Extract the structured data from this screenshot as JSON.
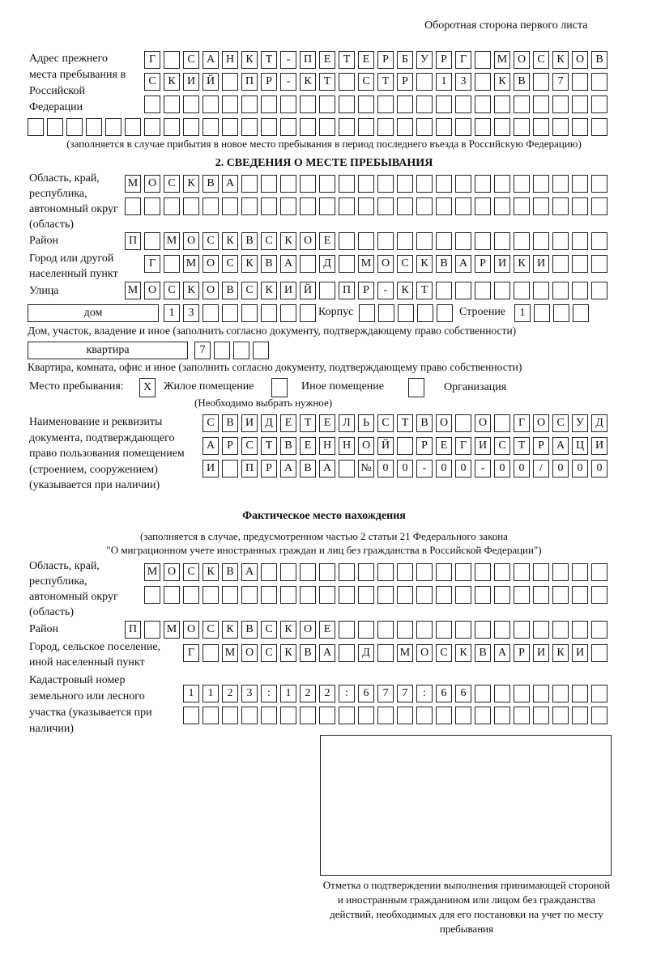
{
  "header": {
    "page_side": "Оборотная сторона первого листа"
  },
  "previous_address": {
    "label": "Адрес прежнего места пребывания в Российской Федерации",
    "rows": [
      "Г САНКТ-ПЕТЕРБУРГ МОСКОВ",
      "СКИЙ ПР-КТ СТР 13 КВ 7",
      "",
      ""
    ],
    "note": "(заполняется в случае прибытия в новое место пребывания в период последнего въезда в Российскую Федерацию)"
  },
  "section2": {
    "title": "2. СВЕДЕНИЯ О МЕСТЕ ПРЕБЫВАНИЯ",
    "region_label": "Область, край, республика, автономный округ (область)",
    "region_rows": [
      "МОСКВА",
      ""
    ],
    "district_label": "Район",
    "district": "П МОСКВСКОЕ",
    "city_label": "Город или другой населенный пункт",
    "city": "Г МОСКВА Д МОСКВАРИКИ",
    "street_label": "Улица",
    "street": "МОСКОВСКИЙ ПР-КТ",
    "house_type": "дом",
    "house_number": "13",
    "korpus_label": "Корпус",
    "korpus": "",
    "building_label": "Строение",
    "building": "1",
    "house_note": "Дом, участок, владение и иное (заполнить согласно документу, подтверждающему право собственности)",
    "apartment_type": "квартира",
    "apartment_number": "7",
    "apartment_note": "Квартира, комната, офис и иное (заполнить согласно документу, подтверждающему право собственности)",
    "stay_place_label": "Место пребывания:",
    "options": [
      {
        "label": "Жилое помещение",
        "checked": true,
        "mark": "Х"
      },
      {
        "label": "Иное помещение",
        "checked": false,
        "mark": ""
      },
      {
        "label": "Организация",
        "checked": false,
        "mark": ""
      }
    ],
    "choose_note": "(Необходимо выбрать нужное)",
    "document_label": "Наименование и реквизиты документа, подтверждающего право пользования помещением (строением, сооружением) (указывается при наличии)",
    "document_rows": [
      "СВИДЕТЕЛЬСТВО О ГОСУД",
      "АРСТВЕННОЙ РЕГИСТРАЦИ",
      "И ПРАВА №00-00-00/000"
    ]
  },
  "actual_location": {
    "title": "Фактическое место нахождения",
    "note_line1": "(заполняется в случае, предусмотренном частью 2 статьи 21 Федерального закона",
    "note_line2": "\"О миграционном учете иностранных граждан и лиц без гражданства в Российской Федерации\")",
    "region_label": "Область, край, республика, автономный округ (область)",
    "region_rows": [
      "МОСКВА",
      ""
    ],
    "district_label": "Район",
    "district": "П МОСКВСКОЕ",
    "city_label": "Город, сельское поселение, иной населенный пункт",
    "city": "Г МОСКВА Д МОСКВАРИКИ",
    "cadastral_label": "Кадастровый номер земельного или лесного участка (указывается при наличии)",
    "cadastral_rows": [
      "1123:122:677:66",
      ""
    ]
  },
  "confirmation": {
    "caption": "Отметка о подтверждении выполнения принимающей стороной и иностранным гражданином или лицом без гражданства действий, необходимых для его постановки на учет по месту пребывания"
  }
}
